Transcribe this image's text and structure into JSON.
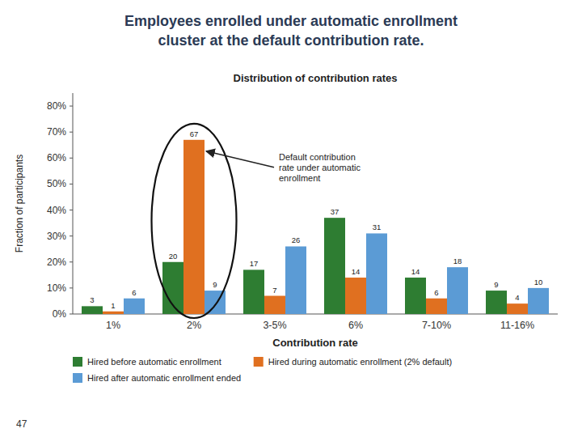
{
  "chart_data": {
    "type": "bar",
    "title": "Employees enrolled under automatic enrollment\ncluster at the default contribution rate.",
    "subtitle": "Distribution of contribution rates",
    "xlabel": "Contribution rate",
    "ylabel": "Fraction of participants",
    "categories": [
      "1%",
      "2%",
      "3-5%",
      "6%",
      "7-10%",
      "11-16%"
    ],
    "series": [
      {
        "name": "Hired before automatic enrollment",
        "color": "#2e7d32",
        "values": [
          3,
          20,
          17,
          37,
          14,
          9
        ]
      },
      {
        "name": "Hired during automatic enrollment (2% default)",
        "color": "#e07020",
        "values": [
          1,
          67,
          7,
          14,
          6,
          4
        ]
      },
      {
        "name": "Hired after automatic enrollment ended",
        "color": "#5b9bd5",
        "values": [
          6,
          9,
          26,
          31,
          18,
          10
        ]
      }
    ],
    "ylim": [
      0,
      85
    ],
    "yticks": [
      {
        "value": 0,
        "label": "0%"
      },
      {
        "value": 10,
        "label": "10%"
      },
      {
        "value": 20,
        "label": "20%"
      },
      {
        "value": 30,
        "label": "30%"
      },
      {
        "value": 40,
        "label": "40%"
      },
      {
        "value": 50,
        "label": "50%"
      },
      {
        "value": 60,
        "label": "60%"
      },
      {
        "value": 70,
        "label": "70%"
      },
      {
        "value": 80,
        "label": "80%"
      }
    ],
    "annotations": [
      "Default contribution\nrate under automatic\nenrollment",
      "47"
    ],
    "data_labels": true,
    "grid": false,
    "legend": "bottom"
  }
}
